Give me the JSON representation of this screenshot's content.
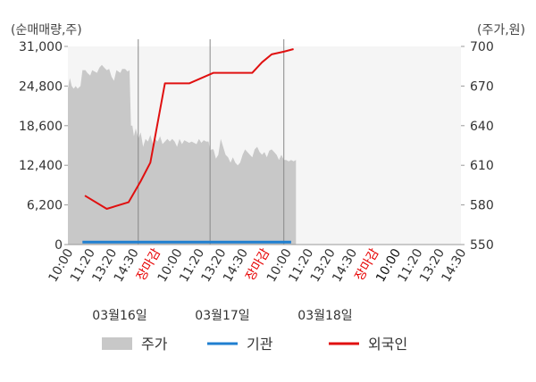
{
  "chart_data": {
    "type": "line",
    "left_unit": "(순매매량,주)",
    "right_unit": "(주가,원)",
    "left_axis": {
      "ylim": [
        0,
        31000
      ],
      "ticks": [
        "31,000",
        "24,800",
        "18,600",
        "12,400",
        "6,200",
        "0"
      ]
    },
    "right_axis": {
      "ylim": [
        550,
        700
      ],
      "ticks": [
        "700",
        "670",
        "640",
        "610",
        "580",
        "550"
      ]
    },
    "x_ticks": [
      {
        "label": "10:00",
        "color": "#333333"
      },
      {
        "label": "11:20",
        "color": "#333333"
      },
      {
        "label": "13:20",
        "color": "#333333"
      },
      {
        "label": "14:30",
        "color": "#333333"
      },
      {
        "label": "장마감",
        "color": "#e60000"
      },
      {
        "label": "10:00",
        "color": "#333333"
      },
      {
        "label": "11:20",
        "color": "#333333"
      },
      {
        "label": "13:20",
        "color": "#333333"
      },
      {
        "label": "14:30",
        "color": "#333333"
      },
      {
        "label": "장마감",
        "color": "#e60000"
      },
      {
        "label": "10:00",
        "color": "#333333"
      },
      {
        "label": "11:20",
        "color": "#333333"
      },
      {
        "label": "13:20",
        "color": "#333333"
      },
      {
        "label": "14:30",
        "color": "#333333"
      },
      {
        "label": "장마감",
        "color": "#e60000"
      },
      {
        "label": "10:00",
        "color": "#111111"
      },
      {
        "label": "11:20",
        "color": "#333333"
      },
      {
        "label": "13:20",
        "color": "#333333"
      },
      {
        "label": "14:30",
        "color": "#333333"
      }
    ],
    "dates": [
      "03월16일",
      "03월17일",
      "03월18일"
    ],
    "series": [
      {
        "name": "주가",
        "axis": "right",
        "color": "#c8c8c8",
        "kind": "area",
        "points": [
          [
            0,
            668
          ],
          [
            0.4,
            676
          ],
          [
            0.8,
            670
          ],
          [
            1.2,
            668
          ],
          [
            1.6,
            670
          ],
          [
            2,
            668
          ],
          [
            2.6,
            670
          ],
          [
            3.0,
            682
          ],
          [
            3.6,
            682
          ],
          [
            4.0,
            680
          ],
          [
            4.6,
            678
          ],
          [
            5.0,
            682
          ],
          [
            5.5,
            681
          ],
          [
            6.0,
            680
          ],
          [
            6.5,
            684
          ],
          [
            7.0,
            686
          ],
          [
            7.5,
            684
          ],
          [
            8.0,
            682
          ],
          [
            8.5,
            683
          ],
          [
            9.0,
            677
          ],
          [
            9.5,
            674
          ],
          [
            10.0,
            682
          ],
          [
            10.4,
            681
          ],
          [
            10.8,
            680
          ],
          [
            11.2,
            683
          ],
          [
            11.8,
            683
          ],
          [
            12.3,
            681
          ],
          [
            12.7,
            682
          ],
          [
            13.0,
            640
          ],
          [
            13.3,
            640
          ],
          [
            13.6,
            632
          ],
          [
            14.0,
            638
          ],
          [
            14.5,
            630
          ],
          [
            15.0,
            635
          ],
          [
            15.5,
            624
          ],
          [
            16.0,
            630
          ],
          [
            16.5,
            628
          ],
          [
            17.0,
            633
          ],
          [
            17.5,
            626
          ],
          [
            18.0,
            630
          ],
          [
            18.5,
            628
          ],
          [
            19.0,
            632
          ],
          [
            19.5,
            626
          ],
          [
            20.0,
            628
          ],
          [
            20.5,
            630
          ],
          [
            21.0,
            628
          ],
          [
            21.5,
            630
          ],
          [
            22.0,
            628
          ],
          [
            22.5,
            624
          ],
          [
            23.0,
            630
          ],
          [
            23.5,
            626
          ],
          [
            24.0,
            629
          ],
          [
            24.5,
            628
          ],
          [
            25.0,
            627
          ],
          [
            25.5,
            628
          ],
          [
            26.0,
            627
          ],
          [
            26.5,
            626
          ],
          [
            27.0,
            630
          ],
          [
            27.5,
            627
          ],
          [
            28.0,
            629
          ],
          [
            28.5,
            628
          ],
          [
            29.0,
            628
          ],
          [
            29.3,
            621
          ],
          [
            29.6,
            622
          ],
          [
            30.0,
            622
          ],
          [
            30.5,
            615
          ],
          [
            31.0,
            618
          ],
          [
            31.5,
            630
          ],
          [
            32.0,
            624
          ],
          [
            32.5,
            618
          ],
          [
            33.0,
            616
          ],
          [
            33.5,
            612
          ],
          [
            34.0,
            616
          ],
          [
            34.5,
            612
          ],
          [
            35.0,
            610
          ],
          [
            35.5,
            612
          ],
          [
            36.0,
            618
          ],
          [
            36.5,
            622
          ],
          [
            37.0,
            620
          ],
          [
            37.5,
            618
          ],
          [
            38.0,
            616
          ],
          [
            38.5,
            622
          ],
          [
            39.0,
            624
          ],
          [
            39.5,
            620
          ],
          [
            40.0,
            618
          ],
          [
            40.5,
            620
          ],
          [
            41.0,
            616
          ],
          [
            41.5,
            621
          ],
          [
            42.0,
            622
          ],
          [
            42.5,
            620
          ],
          [
            43.0,
            618
          ],
          [
            43.5,
            614
          ],
          [
            44.0,
            618
          ],
          [
            44.5,
            614
          ],
          [
            45.0,
            614
          ],
          [
            45.5,
            613
          ],
          [
            46.0,
            614
          ],
          [
            46.5,
            613
          ],
          [
            47.0,
            614
          ]
        ]
      },
      {
        "name": "기관",
        "axis": "left",
        "color": "#1f7fd0",
        "kind": "line",
        "points": [
          [
            3.0,
            380
          ],
          [
            46.0,
            380
          ]
        ]
      },
      {
        "name": "외국인",
        "axis": "right",
        "color": "#e01010",
        "kind": "line",
        "points": [
          [
            3.5,
            587
          ],
          [
            8.0,
            577
          ],
          [
            12.5,
            582
          ],
          [
            15.0,
            598
          ],
          [
            17.0,
            612
          ],
          [
            20.0,
            672
          ],
          [
            25.0,
            672
          ],
          [
            30.0,
            680
          ],
          [
            35.5,
            680
          ],
          [
            38.0,
            680
          ],
          [
            40.0,
            688
          ],
          [
            42.0,
            694
          ],
          [
            44.5,
            696
          ],
          [
            46.5,
            698
          ]
        ]
      }
    ],
    "x_range": [
      0,
      81
    ],
    "day_boundaries": [
      14.5,
      29.3,
      44.5
    ],
    "legend": [
      {
        "label": "주가",
        "color": "#c8c8c8",
        "shape": "box"
      },
      {
        "label": "기관",
        "color": "#1f7fd0",
        "shape": "line"
      },
      {
        "label": "외국인",
        "color": "#e01010",
        "shape": "line"
      }
    ],
    "legend_position": "bottom",
    "grid": false
  }
}
